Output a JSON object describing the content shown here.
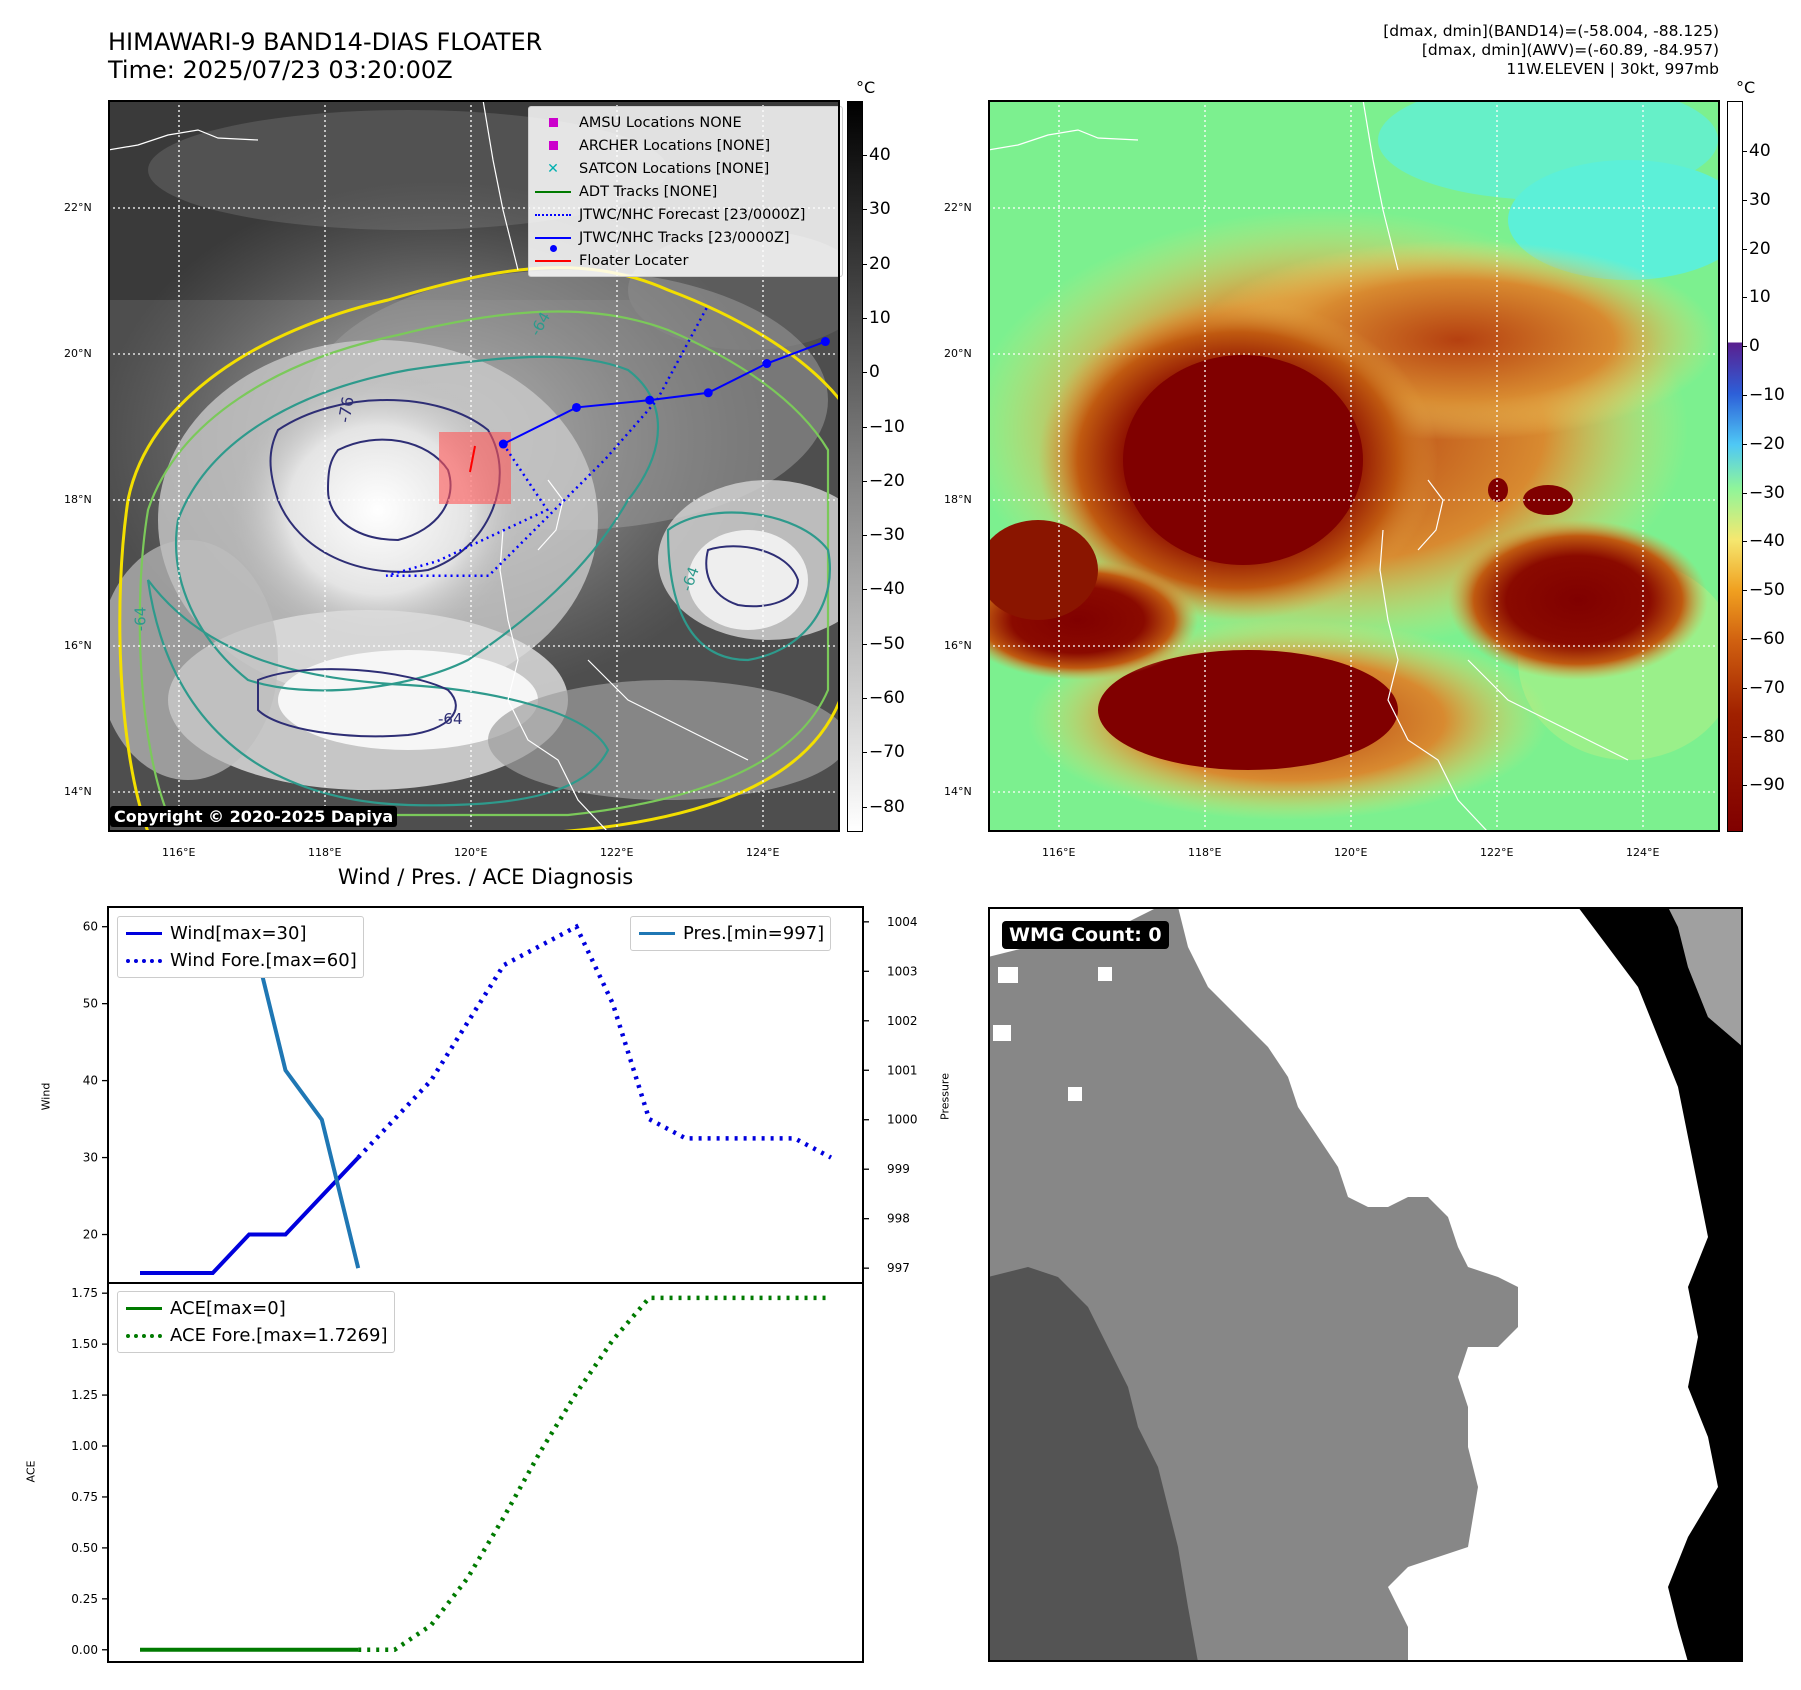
{
  "header": {
    "title_line1": "HIMAWARI-9 BAND14-DIAS FLOATER",
    "title_line2": "Time: 2025/07/23 03:20:00Z",
    "stats_line1": "[dmax, dmin](BAND14)=(-58.004, -88.125)",
    "stats_line2": "[dmax, dmin](AWV)=(-60.89, -84.957)",
    "stats_line3": "11W.ELEVEN | 30kt, 997mb"
  },
  "map": {
    "lat_labels": [
      "22°N",
      "20°N",
      "18°N",
      "16°N",
      "14°N"
    ],
    "lon_labels": [
      "116°E",
      "118°E",
      "120°E",
      "122°E",
      "124°E"
    ],
    "contour_labels": [
      "-64",
      "-76",
      "-64",
      "-64",
      "-64"
    ],
    "copyright": "Copyright © 2020-2025 Dapiya",
    "legend": [
      {
        "label": "AMSU Locations NONE",
        "marker": "square",
        "color": "#cc00cc"
      },
      {
        "label": "ARCHER Locations [NONE]",
        "marker": "square",
        "color": "#cc00cc"
      },
      {
        "label": "SATCON Locations [NONE]",
        "marker": "x",
        "color": "#00b0b0"
      },
      {
        "label": "ADT Tracks [NONE]",
        "marker": "line",
        "color": "#007a00"
      },
      {
        "label": "JTWC/NHC Forecast [23/0000Z]",
        "marker": "dotted",
        "color": "#0000ff"
      },
      {
        "label": "JTWC/NHC Tracks [23/0000Z]",
        "marker": "line-dot",
        "color": "#0000ff"
      },
      {
        "label": "Floater Locater",
        "marker": "line",
        "color": "#ff0000"
      }
    ],
    "track_lonlat": [
      [
        120.4,
        18.8
      ],
      [
        121.4,
        19.3
      ],
      [
        122.4,
        19.4
      ],
      [
        123.2,
        19.5
      ],
      [
        124.0,
        19.9
      ],
      [
        124.8,
        20.2
      ]
    ],
    "forecast_lonlat": [
      [
        120.4,
        18.8
      ],
      [
        121.0,
        17.9
      ],
      [
        119.5,
        17.2
      ],
      [
        118.8,
        17.0
      ],
      [
        120.2,
        17.0
      ],
      [
        121.8,
        18.6
      ],
      [
        122.5,
        19.4
      ],
      [
        123.2,
        20.7
      ]
    ]
  },
  "colorbar_gray": {
    "unit": "°C",
    "ticks": [
      "40",
      "30",
      "20",
      "10",
      "0",
      "−10",
      "−20",
      "−30",
      "−40",
      "−50",
      "−60",
      "−70",
      "−80"
    ]
  },
  "colorbar_color": {
    "unit": "°C",
    "ticks": [
      "40",
      "30",
      "20",
      "10",
      "0",
      "−10",
      "−20",
      "−30",
      "−40",
      "−50",
      "−60",
      "−70",
      "−80",
      "−90"
    ]
  },
  "diagnosis_title": "Wind / Pres. / ACE Diagnosis",
  "wmg": {
    "label": "WMG Count: 0"
  },
  "chart_data": [
    {
      "type": "line",
      "title": "Wind / Pres. / ACE Diagnosis",
      "ylabel": "Wind",
      "ylabel_right": "Pressure",
      "ylim": [
        15,
        61
      ],
      "ylim_right": [
        996.7,
        1004.3
      ],
      "y_ticks": [
        "60",
        "50",
        "40",
        "30",
        "20"
      ],
      "y_right_ticks": [
        "1004",
        "1003",
        "1002",
        "1001",
        "1000",
        "999",
        "998",
        "997"
      ],
      "series": [
        {
          "name": "Wind[max=30]",
          "color": "#0000dd",
          "style": "solid",
          "x": [
            0,
            1,
            2,
            3,
            4,
            5,
            6
          ],
          "values": [
            15,
            15,
            15,
            20,
            20,
            25,
            30
          ]
        },
        {
          "name": "Wind Fore.[max=60]",
          "color": "#0000dd",
          "style": "dotted",
          "x": [
            6,
            8,
            10,
            12,
            13,
            14,
            15,
            16,
            17,
            18,
            19
          ],
          "values": [
            30,
            40,
            55,
            60,
            50,
            35,
            32.5,
            32.5,
            32.5,
            32.5,
            30
          ]
        },
        {
          "name": "Pres.[min=997]",
          "color": "#1f77b4",
          "style": "solid",
          "axis": "right",
          "x": [
            0,
            1,
            2,
            3,
            4,
            5,
            6
          ],
          "values": [
            1004,
            1004,
            1004,
            1004,
            1001,
            1000,
            997
          ]
        }
      ]
    },
    {
      "type": "line",
      "ylabel": "ACE",
      "ylim": [
        -0.06,
        1.8
      ],
      "y_ticks": [
        "1.75",
        "1.50",
        "1.25",
        "1.00",
        "0.75",
        "0.50",
        "0.25",
        "0.00"
      ],
      "series": [
        {
          "name": "ACE[max=0]",
          "color": "#007a00",
          "style": "solid",
          "x": [
            0,
            1,
            2,
            3,
            4,
            5,
            6
          ],
          "values": [
            0,
            0,
            0,
            0,
            0,
            0,
            0
          ]
        },
        {
          "name": "ACE Fore.[max=1.7269]",
          "color": "#007a00",
          "style": "dotted",
          "x": [
            6,
            7,
            8,
            9,
            10,
            11,
            12,
            13,
            14,
            15,
            16,
            17,
            18,
            19
          ],
          "values": [
            0,
            0,
            0.12,
            0.35,
            0.65,
            0.97,
            1.26,
            1.52,
            1.7269,
            1.7269,
            1.7269,
            1.7269,
            1.7269,
            1.7269
          ]
        }
      ]
    }
  ]
}
